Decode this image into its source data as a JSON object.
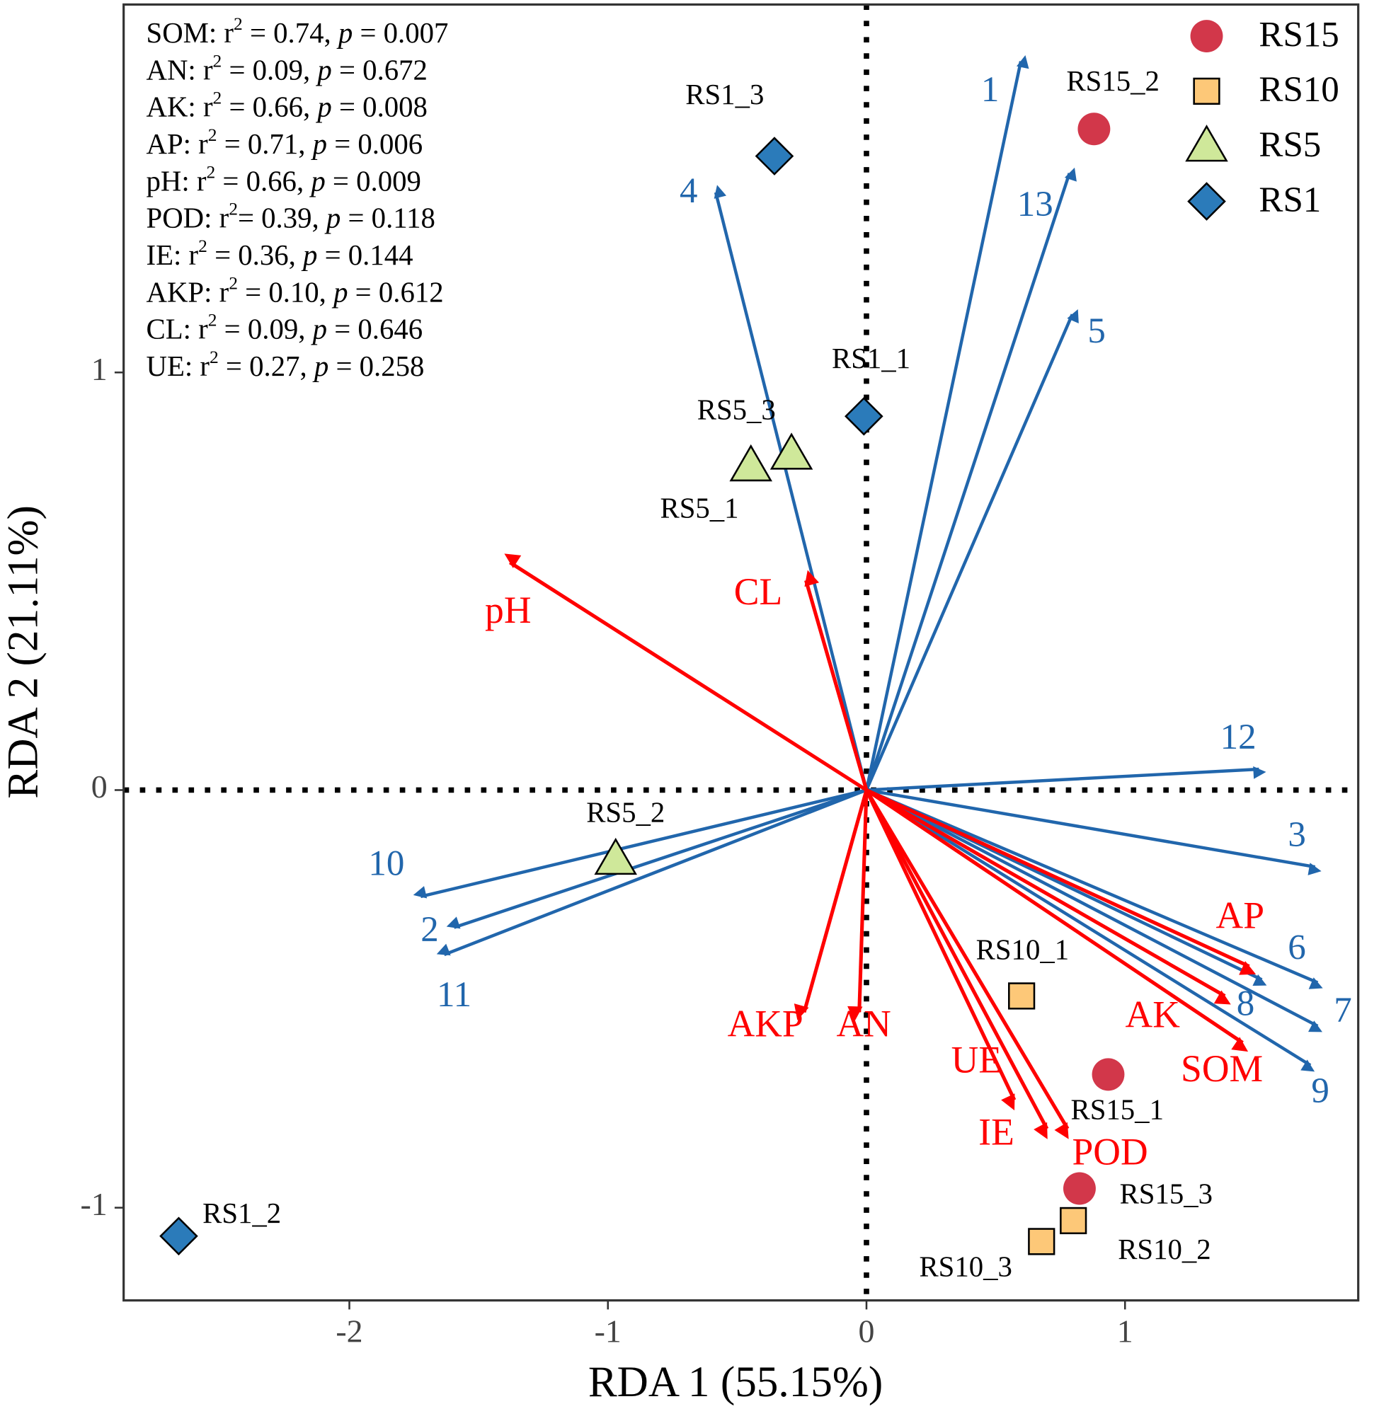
{
  "chart_data": {
    "type": "scatter",
    "x_label": "RDA 1 (55.15%)",
    "y_label": "RDA 2 (21.11%)",
    "xlim": [
      -2.873,
      1.902
    ],
    "ylim": [
      -1.222,
      1.881
    ],
    "xticks": [
      -2,
      -1,
      0,
      1
    ],
    "yticks": [
      -1,
      0,
      1
    ],
    "legend": "upper right",
    "series": [
      {
        "name": "RS15",
        "color": "#d2374a",
        "marker": "circle",
        "labels": [
          "RS15_1",
          "RS15_2",
          "RS15_3"
        ],
        "x": [
          0.935,
          0.88,
          0.824
        ],
        "y": [
          -0.681,
          1.583,
          -0.954
        ]
      },
      {
        "name": "RS10",
        "color": "#fdc878",
        "marker": "square",
        "labels": [
          "RS10_1",
          "RS10_2",
          "RS10_3"
        ],
        "x": [
          0.6,
          0.8,
          0.677
        ],
        "y": [
          -0.493,
          -1.031,
          -1.081
        ]
      },
      {
        "name": "RS5",
        "color": "#cfe89a",
        "marker": "triangle",
        "labels": [
          "RS5_1",
          "RS5_2",
          "RS5_3"
        ],
        "x": [
          -0.447,
          -0.97,
          -0.29
        ],
        "y": [
          0.776,
          -0.166,
          0.804
        ]
      },
      {
        "name": "RS1",
        "color": "#2b7bba",
        "marker": "diamond",
        "labels": [
          "RS1_1",
          "RS1_2",
          "RS1_3"
        ],
        "x": [
          -0.01,
          -2.66,
          -0.356
        ],
        "y": [
          0.895,
          -1.068,
          1.518
        ]
      }
    ],
    "species_arrows": {
      "color": "#2166ac",
      "labels": [
        "1",
        "13",
        "5",
        "4",
        "12",
        "3",
        "6",
        "7",
        "8",
        "9",
        "10",
        "2",
        "11"
      ],
      "x": [
        0.597,
        0.785,
        0.796,
        -0.583,
        1.518,
        1.735,
        1.745,
        1.745,
        1.529,
        1.717,
        -1.724,
        -1.595,
        -1.633
      ],
      "y": [
        1.745,
        1.477,
        1.139,
        1.431,
        0.05,
        -0.184,
        -0.461,
        -0.565,
        -0.454,
        -0.659,
        -0.255,
        -0.329,
        -0.394
      ]
    },
    "env_arrows": {
      "color": "#ff0000",
      "labels": [
        "pH",
        "CL",
        "AKP",
        "AN",
        "UE",
        "IE",
        "POD",
        "AP",
        "AK",
        "SOM"
      ],
      "x": [
        -1.379,
        -0.234,
        -0.241,
        -0.028,
        0.572,
        0.698,
        0.778,
        1.48,
        1.386,
        1.455
      ],
      "y": [
        0.545,
        0.502,
        -0.532,
        -0.532,
        -0.742,
        -0.811,
        -0.811,
        -0.422,
        -0.493,
        -0.605
      ]
    },
    "annotations": [
      [
        "SOM: r",
        "2",
        " = 0.74, ",
        "p",
        " = 0.007"
      ],
      [
        "AN: r",
        "2",
        " = 0.09, ",
        "p",
        " = 0.672"
      ],
      [
        "AK: r",
        "2",
        " = 0.66, ",
        "p",
        " = 0.008"
      ],
      [
        "AP: r",
        "2",
        " = 0.71, ",
        "p",
        " = 0.006"
      ],
      [
        "pH: r",
        "2",
        " = 0.66, ",
        "p",
        " = 0.009"
      ],
      [
        "POD: r",
        "2",
        "= 0.39, ",
        "p",
        " = 0.118"
      ],
      [
        "IE: r",
        "2",
        " = 0.36, ",
        "p",
        " = 0.144"
      ],
      [
        "AKP: r",
        "2",
        " = 0.10, ",
        "p",
        " = 0.612"
      ],
      [
        "CL: r",
        "2",
        " = 0.09, ",
        "p",
        " = 0.646"
      ],
      [
        "UE: r",
        "2",
        " = 0.27, ",
        "p",
        " = 0.258"
      ]
    ]
  }
}
